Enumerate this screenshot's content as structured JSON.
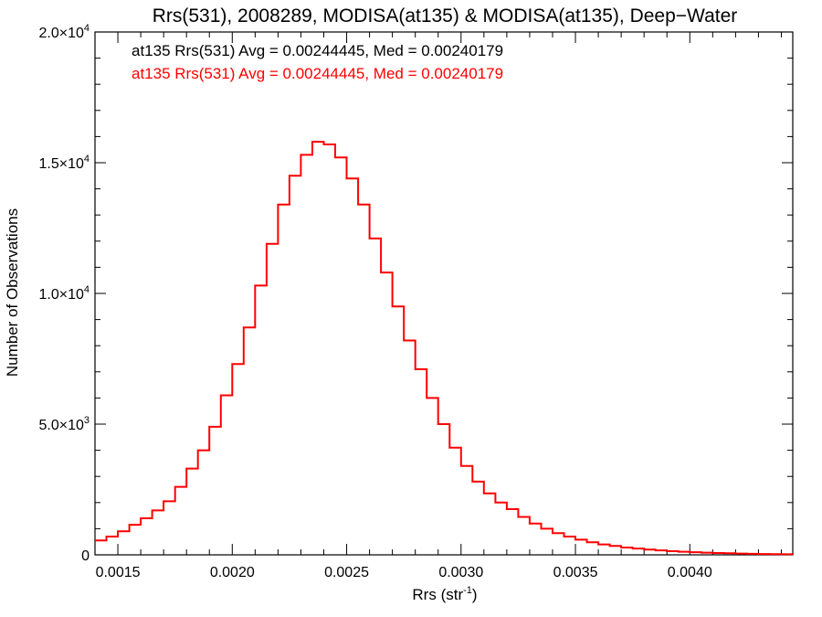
{
  "chart_data": {
    "type": "line",
    "title": "Rrs(531), 2008289, MODISA(at135) & MODISA(at135), Deep−Water",
    "xlabel": "Rrs (str",
    "xlabel_sup": "-1",
    "xlabel_tail": ")",
    "ylabel": "Number of Observations",
    "xlim": [
      0.0014,
      0.00445
    ],
    "ylim": [
      0,
      20000
    ],
    "x_ticks": [
      {
        "value": 0.0015,
        "label": "0.0015"
      },
      {
        "value": 0.002,
        "label": "0.0020"
      },
      {
        "value": 0.0025,
        "label": "0.0025"
      },
      {
        "value": 0.003,
        "label": "0.0030"
      },
      {
        "value": 0.0035,
        "label": "0.0035"
      },
      {
        "value": 0.004,
        "label": "0.0040"
      }
    ],
    "y_ticks": [
      {
        "value": 0,
        "label": "0",
        "sup": ""
      },
      {
        "value": 5000,
        "label": "5.0×10",
        "sup": "3"
      },
      {
        "value": 10000,
        "label": "1.0×10",
        "sup": "4"
      },
      {
        "value": 15000,
        "label": "1.5×10",
        "sup": "4"
      },
      {
        "value": 20000,
        "label": "2.0×10",
        "sup": "4"
      }
    ],
    "annotations": [
      {
        "text": "at135 Rrs(531) Avg = 0.00244445, Med = 0.00240179",
        "color": "#000000"
      },
      {
        "text": "at135 Rrs(531) Avg = 0.00244445, Med = 0.00240179",
        "color": "#ff0000"
      }
    ],
    "series": [
      {
        "color": "#ff0000",
        "x": [
          0.0014,
          0.00145,
          0.0015,
          0.00155,
          0.0016,
          0.00165,
          0.0017,
          0.00175,
          0.0018,
          0.00185,
          0.0019,
          0.00195,
          0.002,
          0.00205,
          0.0021,
          0.00215,
          0.0022,
          0.00225,
          0.0023,
          0.00235,
          0.0024,
          0.00245,
          0.0025,
          0.00255,
          0.0026,
          0.00265,
          0.0027,
          0.00275,
          0.0028,
          0.00285,
          0.0029,
          0.00295,
          0.003,
          0.00305,
          0.0031,
          0.00315,
          0.0032,
          0.00325,
          0.0033,
          0.00335,
          0.0034,
          0.00345,
          0.0035,
          0.00355,
          0.0036,
          0.00365,
          0.0037,
          0.00375,
          0.0038,
          0.00385,
          0.0039,
          0.00395,
          0.004,
          0.00405,
          0.0041,
          0.00415,
          0.0042,
          0.00425,
          0.0043,
          0.00435,
          0.0044,
          0.00445
        ],
        "y": [
          550,
          700,
          900,
          1150,
          1400,
          1700,
          2050,
          2600,
          3300,
          4000,
          4900,
          6100,
          7300,
          8700,
          10300,
          11900,
          13400,
          14500,
          15300,
          15800,
          15700,
          15200,
          14400,
          13400,
          12100,
          10800,
          9500,
          8200,
          7100,
          6000,
          5000,
          4100,
          3400,
          2800,
          2350,
          2000,
          1750,
          1450,
          1200,
          1000,
          830,
          700,
          580,
          480,
          400,
          340,
          280,
          240,
          200,
          170,
          140,
          120,
          100,
          85,
          70,
          60,
          50,
          40,
          30,
          25,
          20,
          15
        ]
      }
    ]
  }
}
